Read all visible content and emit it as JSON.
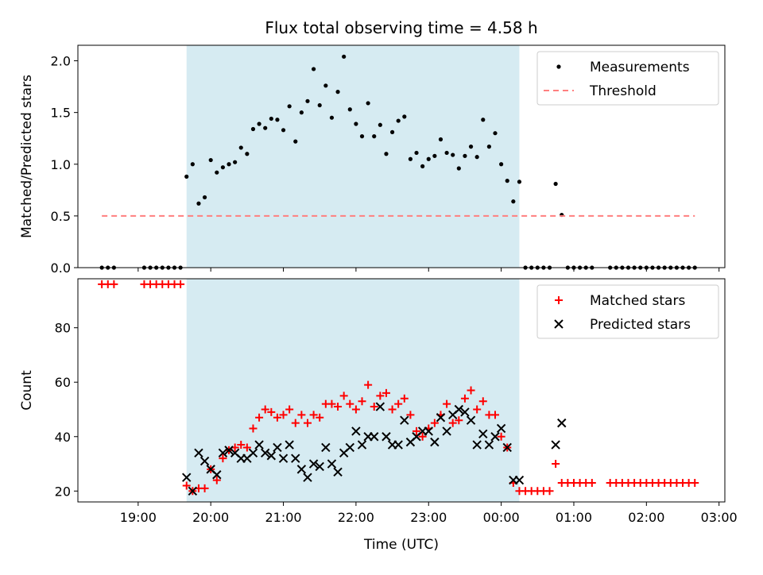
{
  "chart_data": [
    {
      "type": "scatter",
      "title": "Flux total observing time = 4.58 h",
      "xlabel": "",
      "ylabel": "Matched/Predicted stars",
      "ylim": [
        0,
        2.15
      ],
      "xlim_hours": [
        18.17,
        27.08
      ],
      "yticks": [
        "0.0",
        "0.5",
        "1.0",
        "1.5",
        "2.0"
      ],
      "ytick_values": [
        0,
        0.5,
        1.0,
        1.5,
        2.0
      ],
      "grid": false,
      "legend_position": "top-right",
      "shaded_region": {
        "from": "19:40",
        "to": "00:15",
        "color": "#add8e6"
      },
      "series": [
        {
          "name": "Measurements",
          "kind": "points",
          "color": "#000000",
          "x": [
            "18:30",
            "18:35",
            "18:40",
            "19:05",
            "19:10",
            "19:15",
            "19:20",
            "19:25",
            "19:30",
            "19:35",
            "19:40",
            "19:45",
            "19:50",
            "19:55",
            "20:00",
            "20:05",
            "20:10",
            "20:15",
            "20:20",
            "20:25",
            "20:30",
            "20:35",
            "20:40",
            "20:45",
            "20:50",
            "20:55",
            "21:00",
            "21:05",
            "21:10",
            "21:15",
            "21:20",
            "21:25",
            "21:30",
            "21:35",
            "21:40",
            "21:45",
            "21:50",
            "21:55",
            "22:00",
            "22:05",
            "22:10",
            "22:15",
            "22:20",
            "22:25",
            "22:30",
            "22:35",
            "22:40",
            "22:45",
            "22:50",
            "22:55",
            "23:00",
            "23:05",
            "23:10",
            "23:15",
            "23:20",
            "23:25",
            "23:30",
            "23:35",
            "23:40",
            "23:45",
            "23:50",
            "23:55",
            "00:00",
            "00:05",
            "00:10",
            "00:15",
            "00:20",
            "00:25",
            "00:30",
            "00:35",
            "00:40",
            "00:45",
            "00:50",
            "00:55",
            "01:00",
            "01:05",
            "01:10",
            "01:15",
            "01:30",
            "01:35",
            "01:40",
            "01:45",
            "01:50",
            "01:55",
            "02:00",
            "02:05",
            "02:10",
            "02:15",
            "02:20",
            "02:25",
            "02:30",
            "02:35",
            "02:40"
          ],
          "y": [
            0,
            0,
            0,
            0,
            0,
            0,
            0,
            0,
            0,
            0,
            0.88,
            1.0,
            0.62,
            0.68,
            1.04,
            0.92,
            0.97,
            1.0,
            1.02,
            1.16,
            1.1,
            1.34,
            1.39,
            1.35,
            1.44,
            1.43,
            1.33,
            1.56,
            1.22,
            1.5,
            1.61,
            1.92,
            1.57,
            1.76,
            1.45,
            1.7,
            2.04,
            1.53,
            1.39,
            1.27,
            1.59,
            1.27,
            1.38,
            1.1,
            1.31,
            1.42,
            1.46,
            1.05,
            1.11,
            0.98,
            1.05,
            1.08,
            1.24,
            1.11,
            1.09,
            0.96,
            1.08,
            1.17,
            1.07,
            1.43,
            1.17,
            1.3,
            1.0,
            0.84,
            0.64,
            0.83,
            0,
            0,
            0,
            0,
            0,
            0.81,
            0.51,
            0,
            0,
            0,
            0,
            0,
            0,
            0,
            0,
            0,
            0,
            0,
            0,
            0,
            0,
            0,
            0,
            0,
            0,
            0,
            0
          ]
        },
        {
          "name": "Threshold",
          "kind": "dashed-line",
          "color": "#ff7f7f",
          "x": [
            "18:30",
            "02:40"
          ],
          "y": [
            0.5,
            0.5
          ]
        }
      ]
    },
    {
      "type": "scatter",
      "title": "",
      "xlabel": "Time (UTC)",
      "ylabel": "Count",
      "ylim": [
        16,
        98
      ],
      "xlim_hours": [
        18.17,
        27.08
      ],
      "yticks": [
        "20",
        "40",
        "60",
        "80"
      ],
      "ytick_values": [
        20,
        40,
        60,
        80
      ],
      "xticks": [
        "19:00",
        "20:00",
        "21:00",
        "22:00",
        "23:00",
        "00:00",
        "01:00",
        "02:00",
        "03:00"
      ],
      "xtick_hours": [
        19,
        20,
        21,
        22,
        23,
        24,
        25,
        26,
        27
      ],
      "grid": false,
      "legend_position": "top-right",
      "shaded_region": {
        "from": "19:40",
        "to": "00:15",
        "color": "#add8e6"
      },
      "series": [
        {
          "name": "Matched stars",
          "kind": "plus",
          "color": "#ff0000",
          "x": [
            "18:30",
            "18:35",
            "18:40",
            "19:05",
            "19:10",
            "19:15",
            "19:20",
            "19:25",
            "19:30",
            "19:35",
            "19:40",
            "19:45",
            "19:50",
            "19:55",
            "20:00",
            "20:05",
            "20:10",
            "20:15",
            "20:20",
            "20:25",
            "20:30",
            "20:35",
            "20:40",
            "20:45",
            "20:50",
            "20:55",
            "21:00",
            "21:05",
            "21:10",
            "21:15",
            "21:20",
            "21:25",
            "21:30",
            "21:35",
            "21:40",
            "21:45",
            "21:50",
            "21:55",
            "22:00",
            "22:05",
            "22:10",
            "22:15",
            "22:20",
            "22:25",
            "22:30",
            "22:35",
            "22:40",
            "22:45",
            "22:50",
            "22:55",
            "23:00",
            "23:05",
            "23:10",
            "23:15",
            "23:20",
            "23:25",
            "23:30",
            "23:35",
            "23:40",
            "23:45",
            "23:50",
            "23:55",
            "00:00",
            "00:05",
            "00:10",
            "00:15",
            "00:20",
            "00:25",
            "00:30",
            "00:35",
            "00:40",
            "00:45",
            "00:50",
            "00:55",
            "01:00",
            "01:05",
            "01:10",
            "01:15",
            "01:30",
            "01:35",
            "01:40",
            "01:45",
            "01:50",
            "01:55",
            "02:00",
            "02:05",
            "02:10",
            "02:15",
            "02:20",
            "02:25",
            "02:30",
            "02:35",
            "02:40"
          ],
          "y": [
            96,
            96,
            96,
            96,
            96,
            96,
            96,
            96,
            96,
            96,
            22,
            20,
            21,
            21,
            28,
            24,
            32,
            35,
            36,
            37,
            36,
            43,
            47,
            50,
            49,
            47,
            48,
            50,
            45,
            48,
            45,
            48,
            47,
            52,
            52,
            51,
            55,
            52,
            50,
            53,
            59,
            51,
            55,
            56,
            50,
            52,
            54,
            48,
            42,
            40,
            43,
            45,
            48,
            52,
            45,
            46,
            54,
            57,
            50,
            53,
            48,
            48,
            40,
            36,
            23,
            20,
            20,
            20,
            20,
            20,
            20,
            30,
            23,
            23,
            23,
            23,
            23,
            23,
            23,
            23,
            23,
            23,
            23,
            23,
            23,
            23,
            23,
            23,
            23,
            23,
            23,
            23,
            23
          ]
        },
        {
          "name": "Predicted stars",
          "kind": "x",
          "color": "#000000",
          "x": [
            "19:40",
            "19:45",
            "19:50",
            "19:55",
            "20:00",
            "20:05",
            "20:10",
            "20:15",
            "20:20",
            "20:25",
            "20:30",
            "20:35",
            "20:40",
            "20:45",
            "20:50",
            "20:55",
            "21:00",
            "21:05",
            "21:10",
            "21:15",
            "21:20",
            "21:25",
            "21:30",
            "21:35",
            "21:40",
            "21:45",
            "21:50",
            "21:55",
            "22:00",
            "22:05",
            "22:10",
            "22:15",
            "22:20",
            "22:25",
            "22:30",
            "22:35",
            "22:40",
            "22:45",
            "22:50",
            "22:55",
            "23:00",
            "23:05",
            "23:10",
            "23:15",
            "23:20",
            "23:25",
            "23:30",
            "23:35",
            "23:40",
            "23:45",
            "23:50",
            "23:55",
            "00:00",
            "00:05",
            "00:10",
            "00:15",
            "00:45",
            "00:50"
          ],
          "y": [
            25,
            20,
            34,
            31,
            28,
            26,
            34,
            35,
            34,
            32,
            32,
            34,
            37,
            34,
            33,
            36,
            32,
            37,
            32,
            28,
            25,
            30,
            29,
            36,
            30,
            27,
            34,
            36,
            42,
            37,
            40,
            40,
            51,
            40,
            37,
            37,
            46,
            38,
            40,
            42,
            42,
            38,
            47,
            42,
            48,
            50,
            49,
            46,
            37,
            41,
            37,
            40,
            43,
            36,
            24,
            24,
            37,
            45
          ]
        }
      ]
    }
  ]
}
